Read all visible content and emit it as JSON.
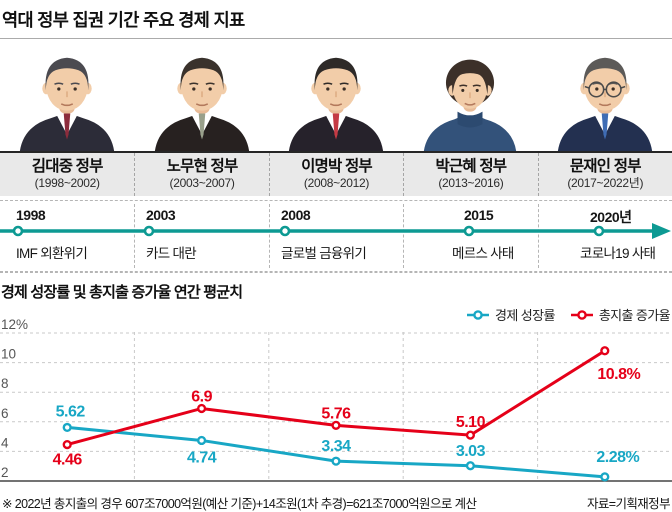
{
  "title": "역대 정부 집권 기간 주요 경제 지표",
  "presidents": [
    {
      "name": "김대중 정부",
      "term": "(1998~2002)",
      "portrait": {
        "id": "kim-dae-jung",
        "style": "male",
        "hair": "#4b4a50",
        "suit": "#2c2c38",
        "tie": "#8c2c3c",
        "glasses": false
      }
    },
    {
      "name": "노무현 정부",
      "term": "(2003~2007)",
      "portrait": {
        "id": "roh-moo-hyun",
        "style": "male",
        "hair": "#3a322c",
        "suit": "#272120",
        "tie": "#99a08b",
        "glasses": false
      }
    },
    {
      "name": "이명박 정부",
      "term": "(2008~2012)",
      "portrait": {
        "id": "lee-myung-bak",
        "style": "male",
        "hair": "#2e2a28",
        "suit": "#26222b",
        "tie": "#c43a44",
        "glasses": false
      }
    },
    {
      "name": "박근혜 정부",
      "term": "(2013~2016)",
      "portrait": {
        "id": "park-geun-hye",
        "style": "female",
        "hair": "#3c3029",
        "suit": "#33527a",
        "tie": "#2c4a70",
        "glasses": false
      }
    },
    {
      "name": "문재인 정부",
      "term": "(2017~2022년)",
      "portrait": {
        "id": "moon-jae-in",
        "style": "male",
        "hair": "#5c5a58",
        "suit": "#233050",
        "tie": "#3f6cb4",
        "glasses": true
      }
    }
  ],
  "timeline": {
    "line_color": "#0d9a93",
    "items": [
      {
        "year": "1998",
        "event": "IMF 외환위기"
      },
      {
        "year": "2003",
        "event": "카드 대란"
      },
      {
        "year": "2008",
        "event": "글로벌 금융위기"
      },
      {
        "year": "2015",
        "event": "메르스 사태"
      },
      {
        "year": "2020년",
        "event": "코로나19 사태"
      }
    ]
  },
  "chart_data": {
    "type": "line",
    "title": "경제 성장률 및 총지출 증가율 연간 평균치",
    "categories": [
      "김대중 정부",
      "노무현 정부",
      "이명박 정부",
      "박근혜 정부",
      "문재인 정부"
    ],
    "series": [
      {
        "name": "경제 성장률",
        "color": "#18a7c5",
        "values": [
          5.62,
          4.74,
          3.34,
          3.03,
          2.28
        ],
        "point_labels": [
          "5.62",
          "4.74",
          "3.34",
          "3.03",
          "2.28%"
        ]
      },
      {
        "name": "총지출 증가율",
        "color": "#e50019",
        "values": [
          4.46,
          6.9,
          5.76,
          5.1,
          10.8
        ],
        "point_labels": [
          "4.46",
          "6.9",
          "5.76",
          "5.10",
          "10.8%"
        ]
      }
    ],
    "y_tick_values": [
      12,
      10,
      8,
      6,
      4,
      2
    ],
    "y_tick_labels": [
      "12%",
      "10",
      "8",
      "6",
      "4",
      "2"
    ],
    "ylim": [
      2,
      12
    ],
    "unit": "%",
    "grid": true,
    "legend_position": "top-right"
  },
  "footnote": "※ 2022년 총지출의 경우 607조7000억원(예산 기준)+14조원(1차 추경)=621조7000억원으로 계산",
  "source": "자료=기획재정부",
  "colors": {
    "timeline": "#0d9a93",
    "growth": "#18a7c5",
    "spending": "#e50019",
    "bar_bg": "#e9e9e9"
  }
}
